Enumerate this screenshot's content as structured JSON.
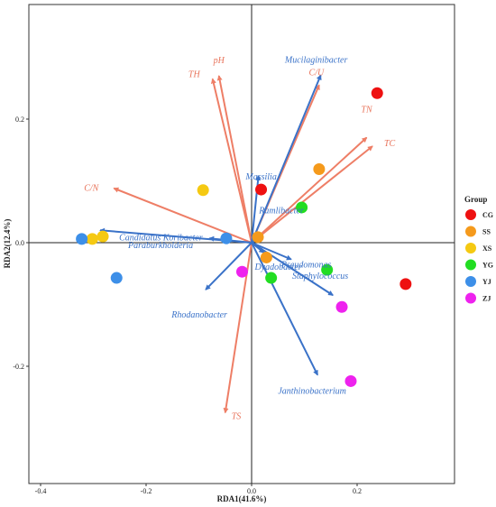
{
  "chart_data": {
    "type": "scatter",
    "xlabel": "RDA1(41.6%)",
    "ylabel": "RDA2(12.4%)",
    "xlim": [
      -0.44,
      0.39
    ],
    "ylim": [
      -0.39,
      0.39
    ],
    "x_ticks": [
      -0.4,
      -0.2,
      0.0,
      0.2
    ],
    "y_ticks": [
      -0.2,
      0.0,
      0.2
    ],
    "x_tick_labels": [
      "-0.4",
      "-0.2",
      "0.0",
      "0.2"
    ],
    "y_tick_labels": [
      "-0.2",
      "0.0",
      "0.2"
    ],
    "grid": false,
    "zero_lines": true,
    "legend_title": "Group",
    "legend_position": "right",
    "groups": [
      {
        "name": "CG",
        "color": "#ee1111",
        "points": [
          [
            0.018,
            0.086
          ],
          [
            0.238,
            0.242
          ],
          [
            0.292,
            -0.067
          ]
        ]
      },
      {
        "name": "SS",
        "color": "#f59a1c",
        "points": [
          [
            0.128,
            0.119
          ],
          [
            0.012,
            0.009
          ],
          [
            0.028,
            -0.024
          ]
        ]
      },
      {
        "name": "XS",
        "color": "#f5c912",
        "points": [
          [
            -0.092,
            0.085
          ],
          [
            -0.282,
            0.01
          ],
          [
            -0.302,
            0.006
          ]
        ]
      },
      {
        "name": "YG",
        "color": "#22dd22",
        "points": [
          [
            0.095,
            0.057
          ],
          [
            0.143,
            -0.044
          ],
          [
            0.037,
            -0.057
          ]
        ]
      },
      {
        "name": "YJ",
        "color": "#3d8fe8",
        "points": [
          [
            -0.322,
            0.006
          ],
          [
            -0.256,
            -0.057
          ],
          [
            -0.048,
            0.007
          ]
        ]
      },
      {
        "name": "ZJ",
        "color": "#ee22ee",
        "points": [
          [
            -0.018,
            -0.047
          ],
          [
            0.171,
            -0.104
          ],
          [
            0.188,
            -0.224
          ]
        ]
      }
    ],
    "env_vectors": [
      {
        "label": "pH",
        "x": -0.062,
        "y": 0.27
      },
      {
        "label": "TH",
        "x": -0.074,
        "y": 0.265
      },
      {
        "label": "C/U",
        "x": 0.128,
        "y": 0.255
      },
      {
        "label": "TN",
        "x": 0.218,
        "y": 0.17
      },
      {
        "label": "TC",
        "x": 0.229,
        "y": 0.156
      },
      {
        "label": "C/N",
        "x": -0.261,
        "y": 0.088
      },
      {
        "label": "TS",
        "x": -0.05,
        "y": -0.275
      }
    ],
    "species_vectors": [
      {
        "label": "Mucilaginibacter",
        "x": 0.131,
        "y": 0.271
      },
      {
        "label": "Massilia",
        "x": 0.013,
        "y": 0.108
      },
      {
        "label": "Candidatus Koribacter",
        "x": -0.287,
        "y": 0.02
      },
      {
        "label": "Ramlibacter",
        "x": 0.021,
        "y": 0.008
      },
      {
        "label": "Paraburkholderia",
        "x": -0.08,
        "y": 0.007
      },
      {
        "label": "Dyadobacter",
        "x": 0.023,
        "y": -0.016
      },
      {
        "label": "Pseudomonas",
        "x": 0.075,
        "y": -0.027
      },
      {
        "label": "Staphylococcus",
        "x": 0.154,
        "y": -0.085
      },
      {
        "label": "Rhodanobacter",
        "x": -0.087,
        "y": -0.076
      },
      {
        "label": "Janthinobacterium",
        "x": 0.125,
        "y": -0.214
      }
    ]
  },
  "colors": {
    "env_arrow": "#ee7e66",
    "env_label": "#e8735a",
    "species_arrow": "#3a72c8",
    "species_label": "#3a72c8"
  }
}
